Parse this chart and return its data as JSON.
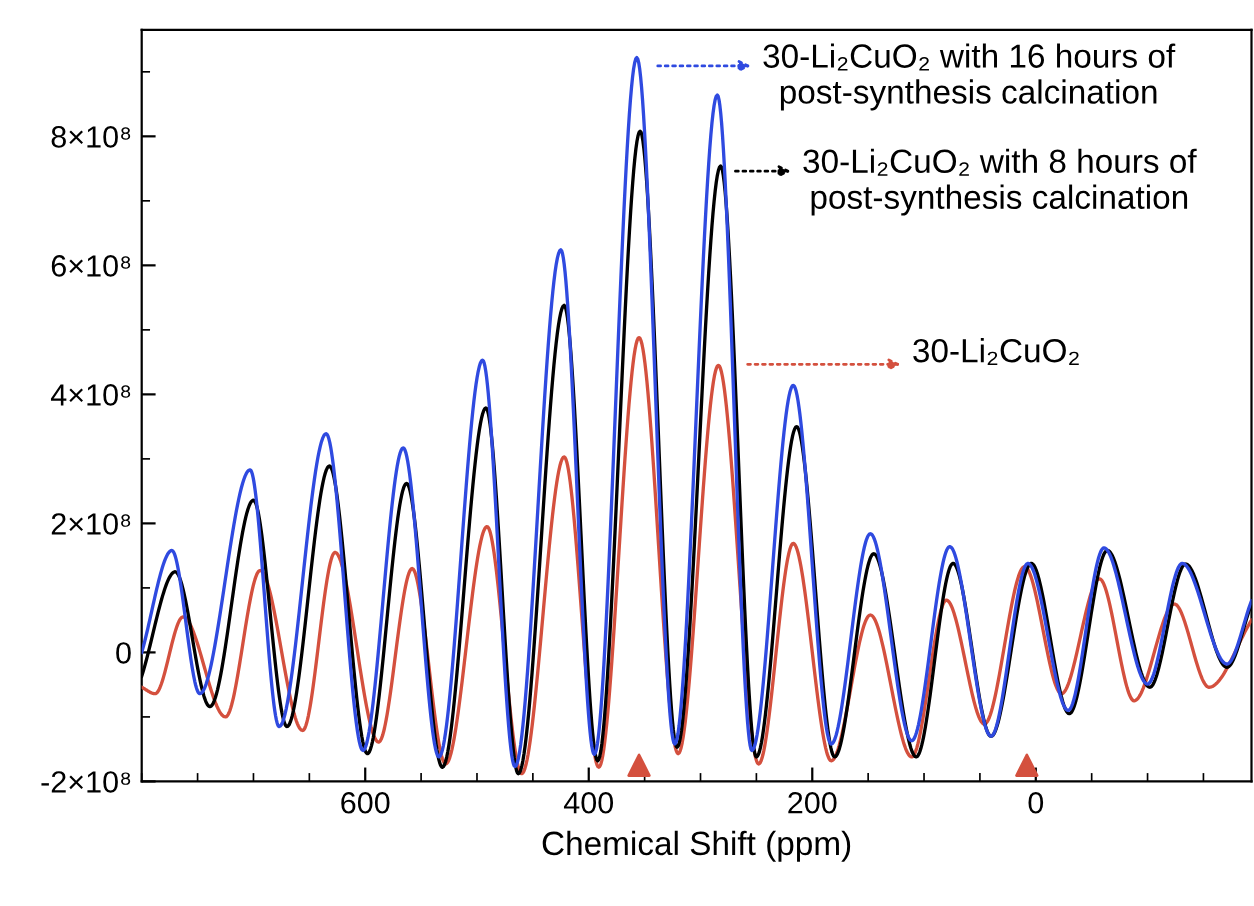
{
  "chart_data": {
    "type": "line",
    "xlabel": "Chemical Shift (ppm)",
    "xlim": [
      800,
      -193
    ],
    "xticks": [
      600,
      400,
      200,
      0
    ],
    "ylim": [
      -200000000,
      965000000
    ],
    "yticks": [
      {
        "value": -200000000,
        "label": "-2×10⁸"
      },
      {
        "value": 0,
        "label": "0"
      },
      {
        "value": 200000000,
        "label": "2×10⁸"
      },
      {
        "value": 400000000,
        "label": "4×10⁸"
      },
      {
        "value": 600000000,
        "label": "6×10⁸"
      },
      {
        "value": 800000000,
        "label": "8×10⁸"
      }
    ],
    "grid": false,
    "legend": "top right",
    "line_style": "solid",
    "series": [
      {
        "name": "30-Li₂CuO₂ with 16 hours of\npost-synthesis calcination",
        "color": "#2f4ae0",
        "x": [
          800,
          773,
          748,
          703,
          677,
          635,
          602,
          566,
          534,
          495,
          466,
          425,
          395,
          357,
          323,
          285,
          254,
          217,
          183,
          148,
          111,
          77,
          40,
          7,
          -29,
          -61,
          -100,
          -131,
          -171,
          -193
        ],
        "values": [
          0,
          158000000,
          -64000000,
          283000000,
          -115000000,
          339000000,
          -152000000,
          317000000,
          -162000000,
          453000000,
          -177000000,
          624000000,
          -158000000,
          922000000,
          -142000000,
          864000000,
          -152000000,
          414000000,
          -142000000,
          184000000,
          -137000000,
          164000000,
          -130000000,
          138000000,
          -90000000,
          162000000,
          -49000000,
          138000000,
          -18000000,
          80000000
        ]
      },
      {
        "name": "30-Li₂CuO₂ with 8 hours of\npost-synthesis calcination",
        "color": "#000000",
        "x": [
          800,
          770,
          739,
          700,
          670,
          632,
          598,
          563,
          531,
          492,
          463,
          422,
          392,
          354,
          321,
          282,
          250,
          214,
          180,
          145,
          107,
          74,
          40,
          4,
          -30,
          -64,
          -102,
          -134,
          -171,
          -193
        ],
        "values": [
          -37000000,
          125000000,
          -84000000,
          236000000,
          -115000000,
          289000000,
          -157000000,
          262000000,
          -178000000,
          379000000,
          -188000000,
          538000000,
          -168000000,
          808000000,
          -147000000,
          754000000,
          -162000000,
          350000000,
          -162000000,
          153000000,
          -162000000,
          138000000,
          -130000000,
          138000000,
          -95000000,
          158000000,
          -54000000,
          137000000,
          -23000000,
          75000000
        ]
      },
      {
        "name": "30-Li₂CuO₂",
        "color": "#d4503e",
        "x": [
          800,
          788,
          763,
          725,
          694,
          656,
          627,
          588,
          558,
          528,
          491,
          460,
          422,
          391,
          355,
          320,
          284,
          248,
          217,
          183,
          148,
          111,
          80,
          46,
          10,
          -23,
          -57,
          -88,
          -124,
          -155,
          -193
        ],
        "values": [
          -54000000,
          -64000000,
          55000000,
          -100000000,
          127000000,
          -121000000,
          155000000,
          -139000000,
          130000000,
          -173000000,
          195000000,
          -188000000,
          303000000,
          -178000000,
          488000000,
          -157000000,
          445000000,
          -173000000,
          169000000,
          -168000000,
          58000000,
          -162000000,
          81000000,
          -111000000,
          133000000,
          -64000000,
          114000000,
          -75000000,
          75000000,
          -54000000,
          50000000
        ]
      },
      {
        "type": "scatter",
        "marker": "triangle",
        "color": "#d4503e",
        "x": [
          355,
          8
        ],
        "values": [
          -175000000,
          -175000000
        ]
      }
    ]
  }
}
